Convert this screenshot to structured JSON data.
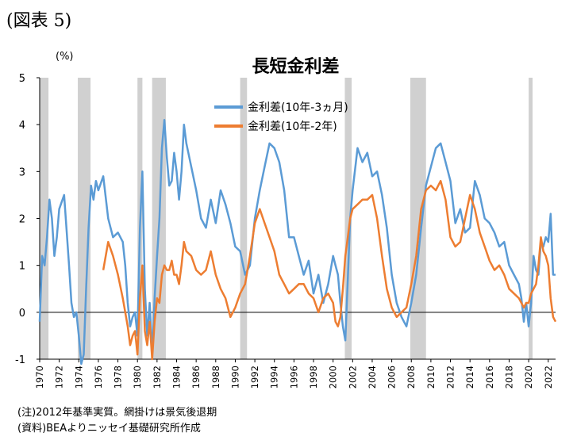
{
  "figure_label": "(図表 5)",
  "notes": [
    "(注)2012年基準実質。網掛けは景気後退期",
    "(資料)BEAよりニッセイ基礎研究所作成"
  ],
  "colors": {
    "series1": "#5b9bd5",
    "series2": "#ed7d31",
    "recession": "#d0d0d0",
    "axis": "#000000"
  },
  "chart_data": {
    "type": "line",
    "title": "長短金利差",
    "ylabel": "(%)",
    "xlabel": "",
    "ylim": [
      -1,
      5
    ],
    "yticks": [
      -1,
      0,
      1,
      2,
      3,
      4,
      5
    ],
    "xlim": [
      1970,
      2022.75
    ],
    "xticks": [
      "1970",
      "1972",
      "1974",
      "1976",
      "1978",
      "1980",
      "1982",
      "1984",
      "1986",
      "1988",
      "1990",
      "1992",
      "1994",
      "1996",
      "1998",
      "2000",
      "2002",
      "2004",
      "2006",
      "2008",
      "2010",
      "2012",
      "2014",
      "2016",
      "2018",
      "2020",
      "2022"
    ],
    "grid": false,
    "legend_position": "top-center",
    "recessions": [
      [
        1970.0,
        1970.9
      ],
      [
        1973.9,
        1975.2
      ],
      [
        1980.0,
        1980.5
      ],
      [
        1981.5,
        1982.9
      ],
      [
        1990.5,
        1991.2
      ],
      [
        2001.2,
        2001.9
      ],
      [
        2007.9,
        2009.5
      ],
      [
        2020.0,
        2020.4
      ]
    ],
    "series": [
      {
        "name": "金利差(10年-3ヵ月)",
        "x": [
          1970.0,
          1970.25,
          1970.5,
          1970.75,
          1971.0,
          1971.25,
          1971.5,
          1971.75,
          1972.0,
          1972.5,
          1973.0,
          1973.25,
          1973.5,
          1973.75,
          1974.0,
          1974.25,
          1974.5,
          1974.75,
          1975.0,
          1975.25,
          1975.5,
          1975.75,
          1976.0,
          1976.5,
          1977.0,
          1977.5,
          1978.0,
          1978.5,
          1978.75,
          1979.0,
          1979.25,
          1979.5,
          1979.75,
          1980.0,
          1980.25,
          1980.5,
          1980.75,
          1981.0,
          1981.25,
          1981.5,
          1981.75,
          1982.0,
          1982.25,
          1982.5,
          1982.75,
          1983.0,
          1983.25,
          1983.5,
          1983.75,
          1984.0,
          1984.25,
          1984.5,
          1984.75,
          1985.0,
          1985.5,
          1986.0,
          1986.5,
          1987.0,
          1987.5,
          1988.0,
          1988.5,
          1989.0,
          1989.5,
          1990.0,
          1990.5,
          1991.0,
          1991.5,
          1992.0,
          1992.5,
          1993.0,
          1993.5,
          1994.0,
          1994.5,
          1995.0,
          1995.5,
          1996.0,
          1996.5,
          1997.0,
          1997.5,
          1998.0,
          1998.5,
          1999.0,
          1999.5,
          2000.0,
          2000.25,
          2000.5,
          2000.75,
          2001.0,
          2001.25,
          2001.5,
          2001.75,
          2002.0,
          2002.5,
          2003.0,
          2003.5,
          2004.0,
          2004.5,
          2005.0,
          2005.5,
          2006.0,
          2006.5,
          2007.0,
          2007.5,
          2008.0,
          2008.5,
          2009.0,
          2009.5,
          2010.0,
          2010.5,
          2011.0,
          2011.5,
          2012.0,
          2012.5,
          2013.0,
          2013.5,
          2014.0,
          2014.5,
          2015.0,
          2015.5,
          2016.0,
          2016.5,
          2017.0,
          2017.5,
          2018.0,
          2018.5,
          2019.0,
          2019.25,
          2019.5,
          2019.75,
          2020.0,
          2020.25,
          2020.5,
          2020.75,
          2021.0,
          2021.25,
          2021.5,
          2021.75,
          2022.0,
          2022.25,
          2022.5,
          2022.75
        ],
        "y": [
          -0.2,
          1.2,
          1.0,
          1.6,
          2.4,
          2.0,
          1.2,
          1.6,
          2.2,
          2.5,
          1.0,
          0.2,
          -0.1,
          0.0,
          -0.5,
          -1.1,
          -0.9,
          0.5,
          1.8,
          2.7,
          2.4,
          2.8,
          2.6,
          2.9,
          2.0,
          1.6,
          1.7,
          1.5,
          1.0,
          0.2,
          -0.3,
          -0.1,
          0.0,
          -0.5,
          1.8,
          3.0,
          0.5,
          -0.5,
          0.2,
          -0.9,
          0.3,
          1.2,
          2.0,
          3.5,
          4.1,
          3.3,
          2.7,
          2.8,
          3.4,
          3.0,
          2.4,
          3.0,
          4.0,
          3.6,
          3.1,
          2.6,
          2.0,
          1.8,
          2.4,
          1.9,
          2.6,
          2.3,
          1.9,
          1.4,
          1.3,
          0.8,
          1.0,
          2.0,
          2.6,
          3.1,
          3.6,
          3.5,
          3.2,
          2.6,
          1.6,
          1.6,
          1.2,
          0.8,
          1.1,
          0.4,
          0.8,
          0.2,
          0.6,
          1.2,
          1.0,
          0.8,
          0.2,
          -0.3,
          -0.6,
          0.7,
          2.0,
          2.6,
          3.5,
          3.2,
          3.4,
          2.9,
          3.0,
          2.5,
          1.8,
          0.8,
          0.2,
          -0.1,
          -0.3,
          0.2,
          0.8,
          1.8,
          2.7,
          3.1,
          3.5,
          3.6,
          3.2,
          2.8,
          1.9,
          2.2,
          1.7,
          1.8,
          2.8,
          2.5,
          2.0,
          1.9,
          1.7,
          1.4,
          1.5,
          1.0,
          0.8,
          0.6,
          0.3,
          -0.2,
          0.2,
          -0.3,
          0.2,
          1.2,
          0.9,
          0.8,
          1.5,
          1.4,
          1.6,
          1.5,
          2.1,
          0.8,
          0.8
        ]
      },
      {
        "name": "金利差(10年-2年)",
        "x": [
          1976.5,
          1977.0,
          1977.5,
          1978.0,
          1978.5,
          1978.75,
          1979.0,
          1979.25,
          1979.5,
          1979.75,
          1980.0,
          1980.25,
          1980.5,
          1980.75,
          1981.0,
          1981.25,
          1981.5,
          1981.75,
          1982.0,
          1982.25,
          1982.5,
          1982.75,
          1983.0,
          1983.25,
          1983.5,
          1983.75,
          1984.0,
          1984.25,
          1984.5,
          1984.75,
          1985.0,
          1985.5,
          1986.0,
          1986.5,
          1987.0,
          1987.5,
          1988.0,
          1988.5,
          1989.0,
          1989.5,
          1990.0,
          1990.5,
          1991.0,
          1991.5,
          1992.0,
          1992.5,
          1993.0,
          1993.5,
          1994.0,
          1994.5,
          1995.0,
          1995.5,
          1996.0,
          1996.5,
          1997.0,
          1997.5,
          1998.0,
          1998.5,
          1999.0,
          1999.5,
          2000.0,
          2000.25,
          2000.5,
          2000.75,
          2001.0,
          2001.25,
          2001.5,
          2001.75,
          2002.0,
          2002.5,
          2003.0,
          2003.5,
          2004.0,
          2004.5,
          2005.0,
          2005.5,
          2006.0,
          2006.5,
          2007.0,
          2007.5,
          2008.0,
          2008.5,
          2009.0,
          2009.5,
          2010.0,
          2010.5,
          2011.0,
          2011.5,
          2012.0,
          2012.5,
          2013.0,
          2013.5,
          2014.0,
          2014.5,
          2015.0,
          2015.5,
          2016.0,
          2016.5,
          2017.0,
          2017.5,
          2018.0,
          2018.5,
          2019.0,
          2019.25,
          2019.5,
          2019.75,
          2020.0,
          2020.25,
          2020.5,
          2020.75,
          2021.0,
          2021.25,
          2021.5,
          2021.75,
          2022.0,
          2022.25,
          2022.5,
          2022.75
        ],
        "y": [
          0.9,
          1.5,
          1.2,
          0.8,
          0.3,
          0.0,
          -0.3,
          -0.7,
          -0.5,
          -0.4,
          -0.9,
          0.3,
          1.0,
          -0.4,
          -0.7,
          -0.2,
          -1.0,
          -0.2,
          0.3,
          0.2,
          0.8,
          1.0,
          0.9,
          0.9,
          1.1,
          0.8,
          0.8,
          0.6,
          1.0,
          1.5,
          1.3,
          1.2,
          0.9,
          0.8,
          0.9,
          1.3,
          0.8,
          0.5,
          0.3,
          -0.1,
          0.1,
          0.4,
          0.6,
          1.2,
          1.9,
          2.2,
          1.9,
          1.6,
          1.3,
          0.8,
          0.6,
          0.4,
          0.5,
          0.6,
          0.6,
          0.4,
          0.3,
          0.0,
          0.3,
          0.4,
          0.2,
          -0.2,
          -0.3,
          -0.1,
          0.5,
          1.2,
          1.6,
          2.0,
          2.2,
          2.3,
          2.4,
          2.4,
          2.5,
          2.0,
          1.2,
          0.5,
          0.1,
          -0.1,
          0.0,
          0.1,
          0.6,
          1.2,
          2.2,
          2.6,
          2.7,
          2.6,
          2.8,
          2.4,
          1.6,
          1.4,
          1.5,
          2.0,
          2.5,
          2.2,
          1.7,
          1.4,
          1.1,
          0.9,
          1.0,
          0.8,
          0.5,
          0.4,
          0.3,
          0.2,
          0.1,
          0.2,
          0.2,
          0.4,
          0.5,
          0.6,
          1.0,
          1.6,
          1.3,
          1.2,
          1.0,
          0.3,
          -0.1,
          -0.2
        ]
      }
    ]
  }
}
